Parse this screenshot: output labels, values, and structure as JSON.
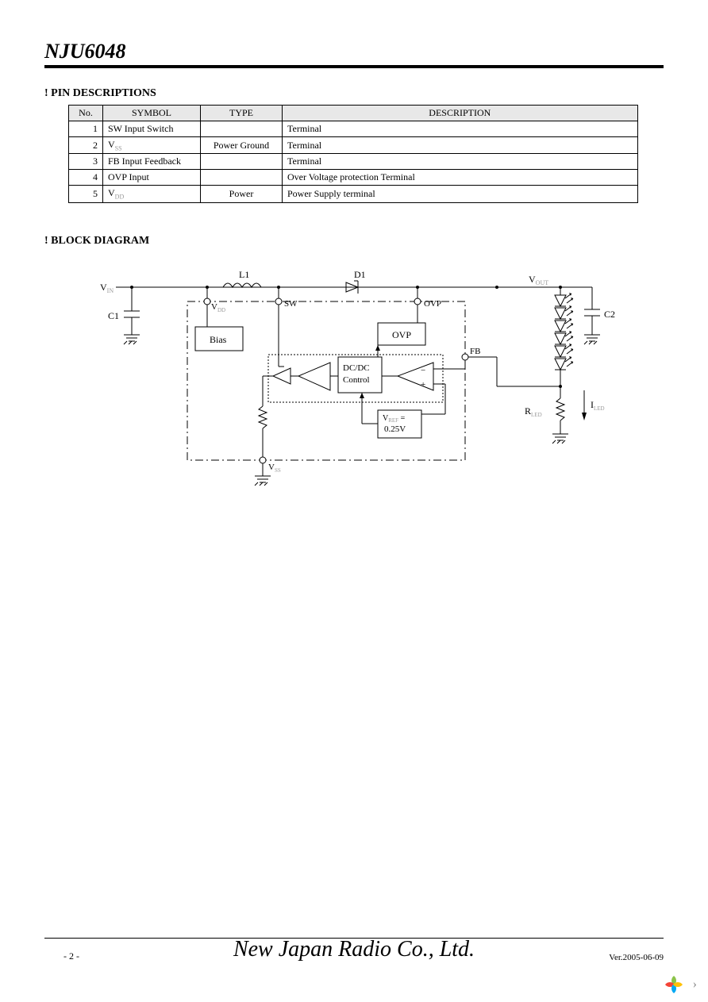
{
  "header": {
    "part_number": "NJU6048"
  },
  "sections": {
    "pin_desc_title": "! PIN DESCRIPTIONS",
    "block_diag_title": "! BLOCK DIAGRAM"
  },
  "pin_table": {
    "headers": {
      "no": "No.",
      "symbol": "SYMBOL",
      "type": "TYPE",
      "desc": "DESCRIPTION"
    },
    "rows": [
      {
        "no": "1",
        "sym_pre": "SW",
        "sym_post": "Input Switch",
        "type": "",
        "desc": "Terminal"
      },
      {
        "no": "2",
        "sym_pre": "V",
        "sym_sub": "SS",
        "sym_post": "",
        "type": "Power Ground",
        "desc": "Terminal"
      },
      {
        "no": "3",
        "sym_pre": "FB",
        "sym_post": "Input Feedback",
        "type": "",
        "desc": "Terminal"
      },
      {
        "no": "4",
        "sym_pre": "OVP",
        "sym_post": "Input",
        "type": "",
        "desc": "Over Voltage protection Terminal"
      },
      {
        "no": "5",
        "sym_pre": "V",
        "sym_sub": "DD",
        "sym_post": "",
        "type": "Power",
        "desc": "Power Supply terminal"
      }
    ]
  },
  "diagram": {
    "labels": {
      "vin": "V",
      "vin_sub": "IN",
      "c1": "C1",
      "c2": "C2",
      "l1": "L1",
      "d1": "D1",
      "vdd": "V",
      "vdd_sub": "DD",
      "sw": "SW",
      "ovp_pin": "OVP",
      "ovp_box": "OVP",
      "bias": "Bias",
      "dcdc1": "DC/DC",
      "dcdc2": "Control",
      "vref1": "V",
      "vref_sub": "REF",
      "vref2": " =",
      "vref3": "0.25V",
      "vss": "V",
      "vss_sub": "SS",
      "vout": "V",
      "vout_sub": "OUT",
      "fb": "FB",
      "rled": "R",
      "rled_sub": "LED",
      "iled": "I",
      "iled_sub": "LED"
    },
    "colors": {
      "stroke": "#000000",
      "bg": "#ffffff",
      "gray_text": "#999999"
    }
  },
  "footer": {
    "company": "New Japan Radio Co., Ltd.",
    "page": "- 2 -",
    "version": "Ver.2005-06-09"
  }
}
